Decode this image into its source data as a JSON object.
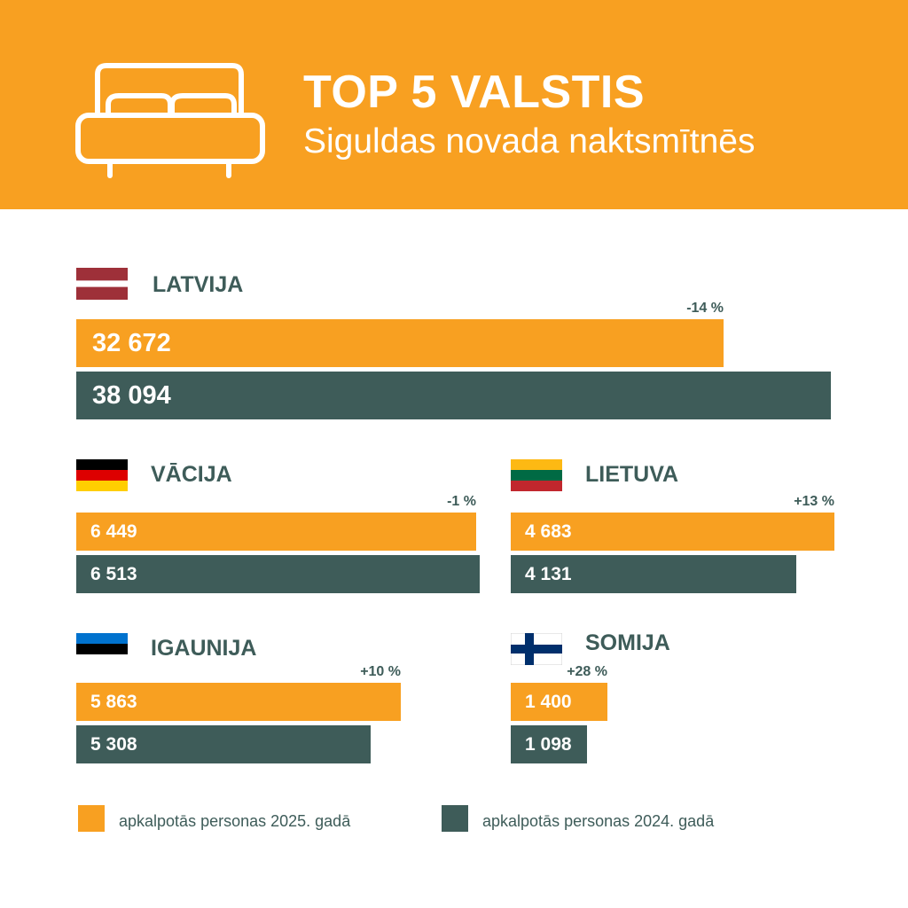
{
  "header": {
    "title": "TOP 5 VALSTIS",
    "subtitle": "Siguldas novada naktsmītnēs",
    "icon": "bed-icon"
  },
  "colors": {
    "header_bg": "#F8A021",
    "series_2025": "#F8A021",
    "series_2024": "#3E5C59",
    "text_dark": "#3E5C59"
  },
  "chart_data": {
    "type": "bar",
    "orientation": "horizontal",
    "title": "TOP 5 VALSTIS",
    "subtitle": "Siguldas novada naktsmītnēs",
    "categories": [
      "LATVIJA",
      "VĀCIJA",
      "LIETUVA",
      "IGAUNIJA",
      "SOMIJA"
    ],
    "series": [
      {
        "name": "apkalpotās personas 2025. gadā",
        "values": [
          32672,
          6449,
          4683,
          5863,
          1400
        ]
      },
      {
        "name": "apkalpotās personas 2024. gadā",
        "values": [
          38094,
          6513,
          4131,
          5308,
          1098
        ]
      }
    ],
    "value_labels_2025": [
      "32 672",
      "6 449",
      "4 683",
      "5 863",
      "1 400"
    ],
    "value_labels_2024": [
      "38 094",
      "6 513",
      "4 131",
      "5 308",
      "1 098"
    ],
    "changes": [
      "-14 %",
      "-1 %",
      "+13 %",
      "+10 %",
      "+28 %"
    ],
    "flags": [
      "latvia-flag",
      "germany-flag",
      "lithuania-flag",
      "estonia-flag",
      "finland-flag"
    ],
    "legend": [
      "apkalpotās personas 2025. gadā",
      "apkalpotās personas 2024. gadā"
    ],
    "legend_position": "bottom",
    "grid": false
  }
}
